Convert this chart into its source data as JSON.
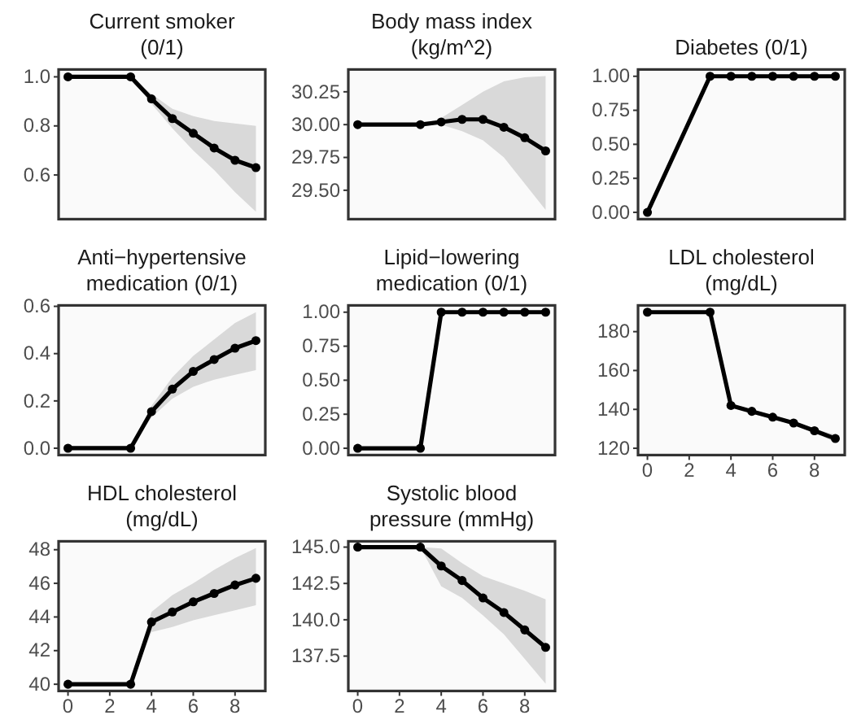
{
  "chart_data": [
    {
      "type": "line",
      "title": "Current smoker\n(0/1)",
      "x": [
        0,
        3,
        4,
        5,
        6,
        7,
        8,
        9
      ],
      "xlim": [
        -0.45,
        9.45
      ],
      "ylim": [
        0.42,
        1.03
      ],
      "yticks": [
        {
          "value": 0.6,
          "label": "0.6"
        },
        {
          "value": 0.8,
          "label": "0.8"
        },
        {
          "value": 1,
          "label": "1.0"
        }
      ],
      "tick_labels": "y",
      "marker": "circle",
      "line_style": "solid",
      "series": [
        {
          "color": "#000000",
          "values": [
            1,
            1,
            0.91,
            0.83,
            0.77,
            0.71,
            0.66,
            0.63
          ],
          "lower": [
            1,
            1,
            0.89,
            0.79,
            0.7,
            0.62,
            0.53,
            0.45
          ],
          "upper": [
            1,
            1,
            0.93,
            0.87,
            0.84,
            0.82,
            0.81,
            0.8
          ]
        }
      ]
    },
    {
      "type": "line",
      "title": "Body mass index\n(kg/m^2)",
      "x": [
        0,
        3,
        4,
        5,
        6,
        7,
        8,
        9
      ],
      "xlim": [
        -0.45,
        9.45
      ],
      "ylim": [
        29.28,
        30.42
      ],
      "yticks": [
        {
          "value": 29.5,
          "label": "29.50"
        },
        {
          "value": 29.75,
          "label": "29.75"
        },
        {
          "value": 30,
          "label": "30.00"
        },
        {
          "value": 30.25,
          "label": "30.25"
        }
      ],
      "tick_labels": "y",
      "marker": "circle",
      "line_style": "solid",
      "series": [
        {
          "color": "#000000",
          "values": [
            30,
            30,
            30.02,
            30.04,
            30.04,
            29.98,
            29.9,
            29.8
          ],
          "lower": [
            30,
            30,
            30,
            29.95,
            29.88,
            29.75,
            29.55,
            29.35
          ],
          "upper": [
            30,
            30,
            30.05,
            30.15,
            30.25,
            30.33,
            30.36,
            30.37
          ]
        }
      ]
    },
    {
      "type": "line",
      "title": "Diabetes (0/1)",
      "x": [
        0,
        3,
        4,
        5,
        6,
        7,
        8,
        9
      ],
      "xlim": [
        -0.45,
        9.45
      ],
      "ylim": [
        -0.05,
        1.05
      ],
      "yticks": [
        {
          "value": 0,
          "label": "0.00"
        },
        {
          "value": 0.25,
          "label": "0.25"
        },
        {
          "value": 0.5,
          "label": "0.50"
        },
        {
          "value": 0.75,
          "label": "0.75"
        },
        {
          "value": 1,
          "label": "1.00"
        }
      ],
      "tick_labels": "y",
      "marker": "circle",
      "line_style": "solid",
      "series": [
        {
          "color": "#000000",
          "values": [
            0,
            1,
            1,
            1,
            1,
            1,
            1,
            1
          ]
        }
      ]
    },
    {
      "type": "line",
      "title": "Anti−hypertensive\nmedication (0/1)",
      "x": [
        0,
        3,
        4,
        5,
        6,
        7,
        8,
        9
      ],
      "xlim": [
        -0.45,
        9.45
      ],
      "ylim": [
        -0.029,
        0.604
      ],
      "yticks": [
        {
          "value": 0,
          "label": "0.0"
        },
        {
          "value": 0.2,
          "label": "0.2"
        },
        {
          "value": 0.4,
          "label": "0.4"
        },
        {
          "value": 0.6,
          "label": "0.6"
        }
      ],
      "tick_labels": "y",
      "marker": "circle",
      "line_style": "solid",
      "series": [
        {
          "color": "#000000",
          "values": [
            0,
            0,
            0.155,
            0.25,
            0.325,
            0.375,
            0.423,
            0.455
          ],
          "lower": [
            0,
            0,
            0.13,
            0.21,
            0.26,
            0.29,
            0.31,
            0.33
          ],
          "upper": [
            0,
            0,
            0.18,
            0.3,
            0.39,
            0.46,
            0.53,
            0.575
          ]
        }
      ]
    },
    {
      "type": "line",
      "title": "Lipid−lowering\nmedication (0/1)",
      "x": [
        0,
        3,
        4,
        5,
        6,
        7,
        8,
        9
      ],
      "xlim": [
        -0.45,
        9.45
      ],
      "ylim": [
        -0.05,
        1.05
      ],
      "yticks": [
        {
          "value": 0,
          "label": "0.00"
        },
        {
          "value": 0.25,
          "label": "0.25"
        },
        {
          "value": 0.5,
          "label": "0.50"
        },
        {
          "value": 0.75,
          "label": "0.75"
        },
        {
          "value": 1,
          "label": "1.00"
        }
      ],
      "tick_labels": "y",
      "marker": "circle",
      "line_style": "solid",
      "series": [
        {
          "color": "#000000",
          "values": [
            0,
            0,
            1,
            1,
            1,
            1,
            1,
            1
          ]
        }
      ]
    },
    {
      "type": "line",
      "title": "LDL cholesterol\n(mg/dL)",
      "x": [
        0,
        3,
        4,
        5,
        6,
        7,
        8,
        9
      ],
      "xlim": [
        -0.45,
        9.45
      ],
      "xticks": [
        0,
        2,
        4,
        6,
        8
      ],
      "ylim": [
        116.5,
        193.5
      ],
      "yticks": [
        120,
        140,
        160,
        180
      ],
      "marker": "circle",
      "line_style": "solid",
      "series": [
        {
          "color": "#000000",
          "values": [
            190,
            190,
            142,
            139,
            136,
            133,
            129,
            125
          ],
          "lower": [
            190,
            190,
            141,
            138,
            135,
            132,
            128,
            123
          ],
          "upper": [
            190,
            190,
            143,
            140,
            137,
            134,
            130,
            127
          ]
        }
      ]
    },
    {
      "type": "line",
      "title": "HDL cholesterol\n(mg/dL)",
      "x": [
        0,
        3,
        4,
        5,
        6,
        7,
        8,
        9
      ],
      "xlim": [
        -0.45,
        9.45
      ],
      "xticks": [
        0,
        2,
        4,
        6,
        8
      ],
      "ylim": [
        39.6,
        48.5
      ],
      "yticks": [
        40,
        42,
        44,
        46,
        48
      ],
      "marker": "circle",
      "line_style": "solid",
      "series": [
        {
          "color": "#000000",
          "values": [
            40,
            40,
            43.7,
            44.3,
            44.9,
            45.4,
            45.9,
            46.3
          ],
          "lower": [
            40,
            40,
            43.1,
            43.4,
            43.8,
            44.1,
            44.4,
            44.7
          ],
          "upper": [
            40,
            40,
            44.3,
            45.3,
            46,
            46.8,
            47.5,
            48.1
          ]
        }
      ]
    },
    {
      "type": "line",
      "title": "Systolic blood\npressure (mmHg)",
      "x": [
        0,
        3,
        4,
        5,
        6,
        7,
        8,
        9
      ],
      "xlim": [
        -0.45,
        9.45
      ],
      "xticks": [
        0,
        2,
        4,
        6,
        8
      ],
      "ylim": [
        135.1,
        145.4
      ],
      "yticks": [
        {
          "value": 137.5,
          "label": "137.5"
        },
        {
          "value": 140,
          "label": "140.0"
        },
        {
          "value": 142.5,
          "label": "142.5"
        },
        {
          "value": 145,
          "label": "145.0"
        }
      ],
      "marker": "circle",
      "line_style": "solid",
      "series": [
        {
          "color": "#000000",
          "values": [
            145,
            145,
            143.7,
            142.7,
            141.5,
            140.5,
            139.3,
            138.1
          ],
          "lower": [
            145,
            145,
            142.3,
            141.5,
            140.3,
            139,
            137.3,
            135.6
          ],
          "upper": [
            145,
            145,
            144.9,
            143.9,
            143,
            142.5,
            142,
            141.4
          ]
        }
      ]
    }
  ]
}
